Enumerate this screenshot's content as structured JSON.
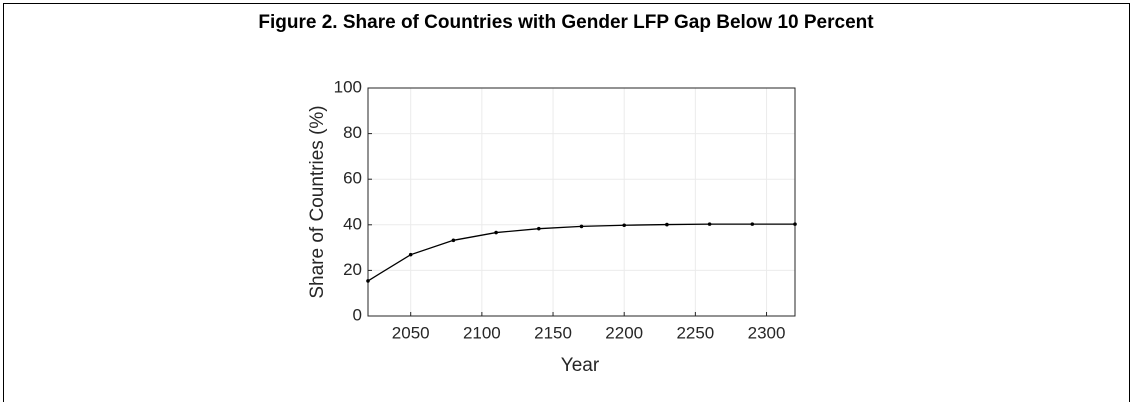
{
  "chart_data": {
    "type": "line",
    "title": "Figure 2. Share of Countries with Gender LFP Gap Below 10 Percent",
    "x_label": "Year",
    "y_label": "Share of Countries (%)",
    "x": [
      2020,
      2050,
      2080,
      2110,
      2140,
      2170,
      2200,
      2230,
      2260,
      2290,
      2320
    ],
    "series": [
      {
        "color": "#000000",
        "values": [
          15.4,
          26.9,
          33.2,
          36.6,
          38.3,
          39.3,
          39.8,
          40.1,
          40.3,
          40.3,
          40.3
        ]
      }
    ],
    "xlim": [
      2020,
      2320
    ],
    "xticks": [
      2050,
      2100,
      2150,
      2200,
      2250,
      2300
    ],
    "ylim": [
      0,
      100
    ],
    "yticks": [
      0,
      20,
      40,
      60,
      80,
      100
    ],
    "grid": true
  }
}
